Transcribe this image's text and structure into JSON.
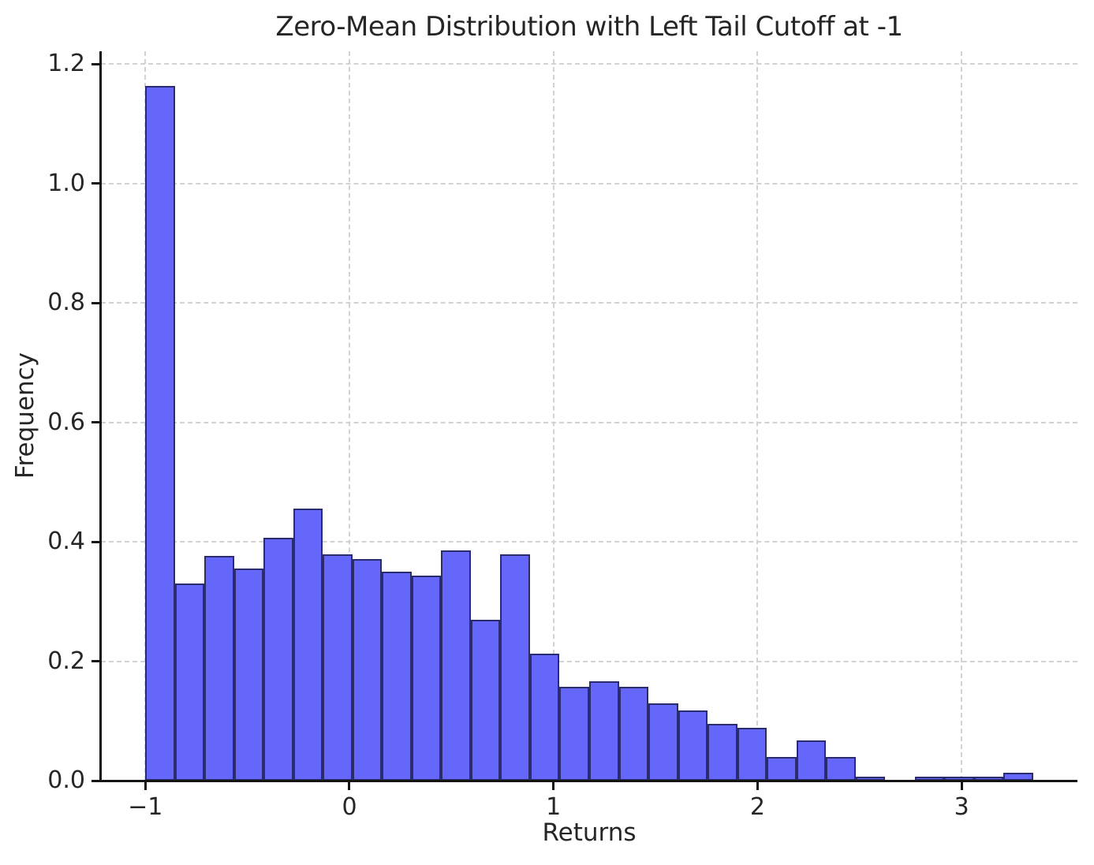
{
  "figure": {
    "kind": "matplotlib-histogram-figure"
  },
  "chart_data": {
    "type": "bar",
    "subtype": "histogram",
    "title": "Zero-Mean Distribution with Left Tail Cutoff at -1",
    "xlabel": "Returns",
    "ylabel": "Frequency",
    "bin_width": 0.145,
    "bin_edges": [
      -1.0,
      -0.855,
      -0.71,
      -0.565,
      -0.42,
      -0.275,
      -0.13,
      0.015,
      0.16,
      0.305,
      0.45,
      0.595,
      0.74,
      0.885,
      1.03,
      1.175,
      1.32,
      1.465,
      1.61,
      1.755,
      1.9,
      2.045,
      2.19,
      2.335,
      2.48,
      2.625,
      2.77,
      2.915,
      3.06,
      3.205,
      3.35
    ],
    "values": [
      1.163,
      0.33,
      0.377,
      0.355,
      0.407,
      0.456,
      0.379,
      0.371,
      0.35,
      0.344,
      0.385,
      0.269,
      0.379,
      0.212,
      0.157,
      0.166,
      0.157,
      0.13,
      0.117,
      0.095,
      0.089,
      0.04,
      0.067,
      0.04,
      0.007,
      0.0,
      0.007,
      0.007,
      0.007,
      0.013
    ],
    "xticks": [
      -1,
      0,
      1,
      2,
      3
    ],
    "xtick_labels": [
      "−1",
      "0",
      "1",
      "2",
      "3"
    ],
    "yticks": [
      0.0,
      0.2,
      0.4,
      0.6,
      0.8,
      1.0,
      1.2
    ],
    "ytick_labels": [
      "0.0",
      "0.2",
      "0.4",
      "0.6",
      "0.8",
      "1.0",
      "1.2"
    ],
    "xlim": [
      -1.2175,
      3.5675
    ],
    "ylim": [
      0,
      1.2216
    ],
    "grid": true,
    "grid_style": "dashed",
    "legend_position": "none",
    "colors": {
      "bar_fill": "#6467fa",
      "bar_edge": "#2b2c6e",
      "grid": "#d2d2d2",
      "spine": "#151515",
      "text": "#262626",
      "background": "#ffffff"
    }
  }
}
